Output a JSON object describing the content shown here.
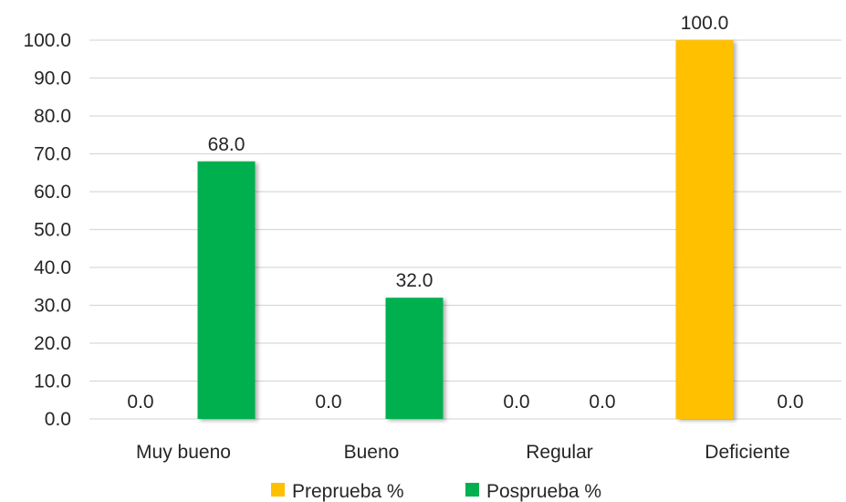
{
  "chart_data": {
    "type": "bar",
    "title": "",
    "xlabel": "",
    "ylabel": "",
    "categories": [
      "Muy bueno",
      "Bueno",
      "Regular",
      "Deficiente"
    ],
    "series": [
      {
        "name": "Preprueba %",
        "values": [
          0.0,
          0.0,
          0.0,
          100.0
        ],
        "color": "#FFC000"
      },
      {
        "name": "Posprueba %",
        "values": [
          68.0,
          32.0,
          0.0,
          0.0
        ],
        "color": "#00B050"
      }
    ],
    "ylim": [
      0,
      100
    ],
    "yticks": [
      0,
      10,
      20,
      30,
      40,
      50,
      60,
      70,
      80,
      90,
      100
    ],
    "value_format_decimals": 1,
    "grid": true,
    "legend_position": "bottom"
  }
}
